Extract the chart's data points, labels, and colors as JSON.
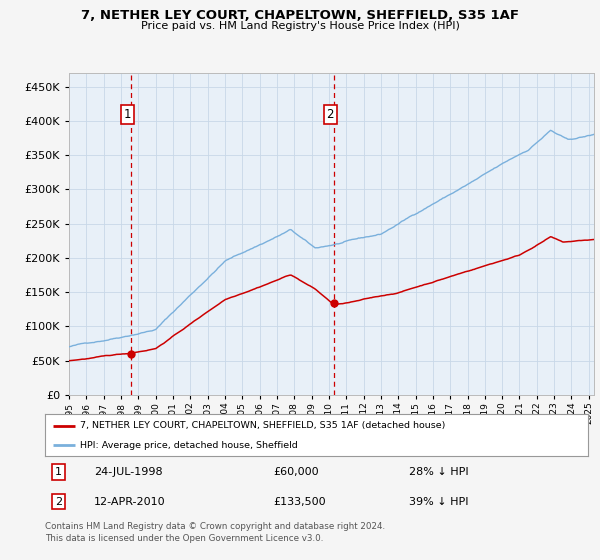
{
  "title": "7, NETHER LEY COURT, CHAPELTOWN, SHEFFIELD, S35 1AF",
  "subtitle": "Price paid vs. HM Land Registry's House Price Index (HPI)",
  "legend_line1": "7, NETHER LEY COURT, CHAPELTOWN, SHEFFIELD, S35 1AF (detached house)",
  "legend_line2": "HPI: Average price, detached house, Sheffield",
  "annotation1_date": "24-JUL-1998",
  "annotation1_price": "£60,000",
  "annotation1_hpi": "28% ↓ HPI",
  "annotation2_date": "12-APR-2010",
  "annotation2_price": "£133,500",
  "annotation2_hpi": "39% ↓ HPI",
  "footer": "Contains HM Land Registry data © Crown copyright and database right 2024.\nThis data is licensed under the Open Government Licence v3.0.",
  "sale1_year": 1998.57,
  "sale1_price": 60000,
  "sale2_year": 2010.28,
  "sale2_price": 133500,
  "hpi_color": "#7ab0dc",
  "property_color": "#cc0000",
  "background_plot": "#e8f0f8",
  "background_fig": "#f5f5f5",
  "dashed_line_color": "#cc0000",
  "grid_color": "#c8d8e8",
  "ylim": [
    0,
    470000
  ],
  "yticks": [
    0,
    50000,
    100000,
    150000,
    200000,
    250000,
    300000,
    350000,
    400000,
    450000
  ],
  "xlim_start": 1995.0,
  "xlim_end": 2025.3
}
